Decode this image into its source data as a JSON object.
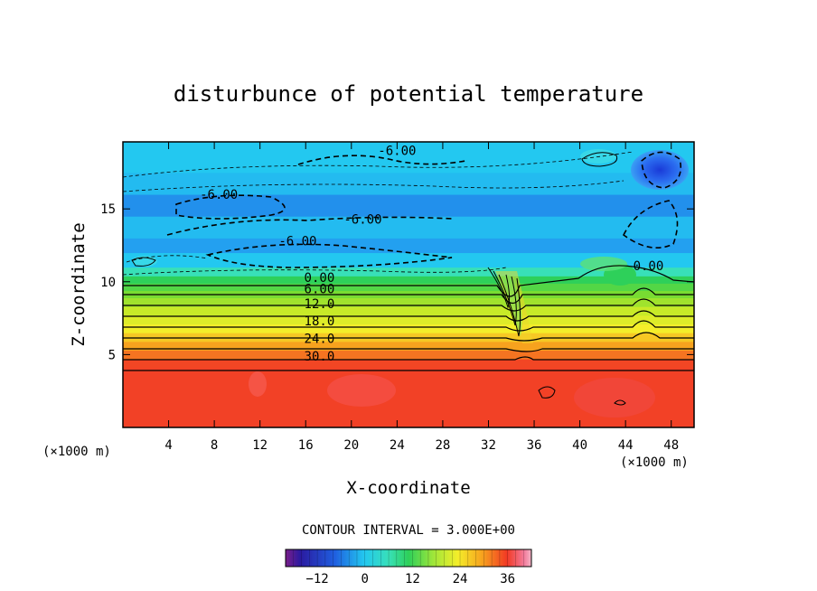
{
  "chart_data": {
    "type": "heatmap",
    "title": "disturbunce of potential temperature",
    "xlabel": "X-coordinate",
    "ylabel": "Z-coordinate",
    "x_unit": "(×1000 m)",
    "z_unit": "(×1000 m)",
    "xlim": [
      0,
      50
    ],
    "ylim": [
      0,
      19.6
    ],
    "x_ticks": [
      4,
      8,
      12,
      16,
      20,
      24,
      28,
      32,
      36,
      40,
      44,
      48
    ],
    "y_ticks": [
      5,
      10,
      15
    ],
    "contour_interval_label": "CONTOUR INTERVAL = 3.000E+00",
    "colorbar": {
      "range": [
        -20,
        42
      ],
      "ticks": [
        -12,
        0,
        12,
        24,
        36
      ]
    },
    "contour_labels": [
      {
        "text": "-6.00",
        "x": 24.0,
        "y": 18.7
      },
      {
        "text": "-6.00",
        "x": 8.4,
        "y": 15.7
      },
      {
        "text": "-6.00",
        "x": 21.0,
        "y": 14.0
      },
      {
        "text": "-6.00",
        "x": 15.3,
        "y": 12.5
      },
      {
        "text": "0.00",
        "x": 46.0,
        "y": 10.8
      },
      {
        "text": "0.00",
        "x": 17.2,
        "y": 10.0
      },
      {
        "text": "6.00",
        "x": 17.2,
        "y": 9.2
      },
      {
        "text": "12.0",
        "x": 17.2,
        "y": 8.2
      },
      {
        "text": "18.0",
        "x": 17.2,
        "y": 7.0
      },
      {
        "text": "24.0",
        "x": 17.2,
        "y": 5.8
      },
      {
        "text": "30.0",
        "x": 17.2,
        "y": 4.6
      }
    ],
    "bands": [
      {
        "z0": 0.0,
        "z1": 4.1,
        "value": 36
      },
      {
        "z0": 4.1,
        "z1": 4.7,
        "value": 33
      },
      {
        "z0": 4.7,
        "z1": 5.3,
        "value": 30
      },
      {
        "z0": 5.3,
        "z1": 5.9,
        "value": 27
      },
      {
        "z0": 5.9,
        "z1": 6.5,
        "value": 24
      },
      {
        "z0": 6.5,
        "z1": 7.1,
        "value": 21
      },
      {
        "z0": 7.1,
        "z1": 7.7,
        "value": 18
      },
      {
        "z0": 7.7,
        "z1": 8.3,
        "value": 15
      },
      {
        "z0": 8.3,
        "z1": 8.9,
        "value": 12
      },
      {
        "z0": 8.9,
        "z1": 9.4,
        "value": 9
      },
      {
        "z0": 9.4,
        "z1": 9.9,
        "value": 6
      },
      {
        "z0": 9.9,
        "z1": 10.4,
        "value": 3
      },
      {
        "z0": 10.4,
        "z1": 11.0,
        "value": 0
      },
      {
        "z0": 11.0,
        "z1": 12.0,
        "value": -3
      },
      {
        "z0": 12.0,
        "z1": 13.0,
        "value": -6
      },
      {
        "z0": 13.0,
        "z1": 14.5,
        "value": -4
      },
      {
        "z0": 14.5,
        "z1": 16.0,
        "value": -7
      },
      {
        "z0": 16.0,
        "z1": 17.5,
        "value": -4
      },
      {
        "z0": 17.5,
        "z1": 19.6,
        "value": -3
      }
    ]
  }
}
